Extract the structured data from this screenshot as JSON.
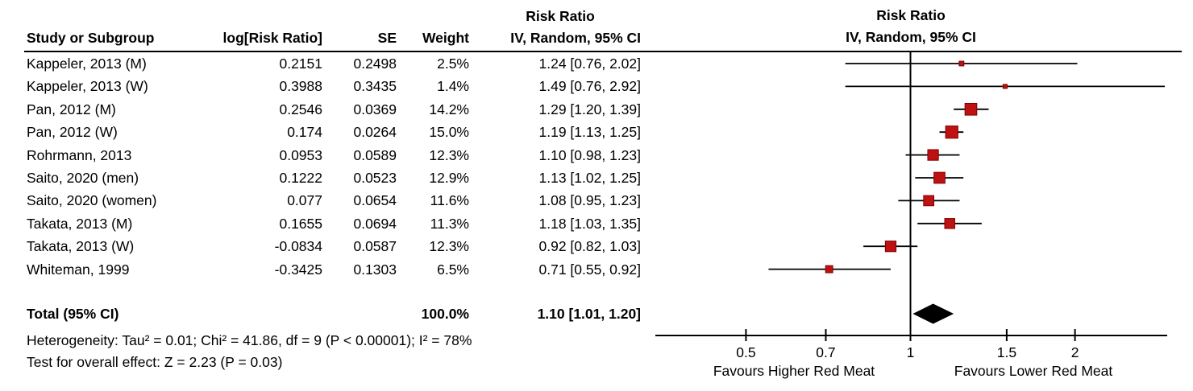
{
  "figure": {
    "columns": {
      "study": "Study or Subgroup",
      "log_rr": "log[Risk Ratio]",
      "se": "SE",
      "weight": "Weight",
      "effect_line1": "Risk Ratio",
      "effect_line2": "IV, Random, 95% CI"
    },
    "plot_header": {
      "line1": "Risk Ratio",
      "line2": "IV, Random, 95% CI"
    },
    "total_row": {
      "label": "Total (95% CI)",
      "weight": "100.0%",
      "ci_text": "1.10 [1.01, 1.20]"
    },
    "footer": {
      "heterogeneity": "Heterogeneity: Tau² = 0.01; Chi² = 41.86, df = 9 (P < 0.00001); I² = 78%",
      "overall_effect": "Test for overall effect: Z = 2.23 (P = 0.03)"
    }
  },
  "chart_data": {
    "type": "scatter",
    "subtype": "forest-plot",
    "title": "Risk Ratio IV, Random, 95% CI",
    "xscale": "log",
    "xlim": [
      0.34,
      2.95
    ],
    "xticks": [
      0.5,
      0.7,
      1,
      1.5,
      2
    ],
    "xtick_labels": [
      "0.5",
      "0.7",
      "1",
      "1.5",
      "2"
    ],
    "axis_label_left": "Favours Higher Red Meat",
    "axis_label_right": "Favours Lower Red Meat",
    "marker_color": "#be1111",
    "marker_border": "#7e0000",
    "diamond_color": "#000000",
    "studies": [
      {
        "study": "Kappeler, 2013 (M)",
        "log_rr": "0.2151",
        "se": "0.2498",
        "weight": "2.5%",
        "ci_text": "1.24 [0.76, 2.02]",
        "rr": 1.24,
        "lo": 0.76,
        "hi": 2.02,
        "weight_pct": 2.5
      },
      {
        "study": "Kappeler, 2013 (W)",
        "log_rr": "0.3988",
        "se": "0.3435",
        "weight": "1.4%",
        "ci_text": "1.49 [0.76, 2.92]",
        "rr": 1.49,
        "lo": 0.76,
        "hi": 2.92,
        "weight_pct": 1.4
      },
      {
        "study": "Pan, 2012 (M)",
        "log_rr": "0.2546",
        "se": "0.0369",
        "weight": "14.2%",
        "ci_text": "1.29 [1.20, 1.39]",
        "rr": 1.29,
        "lo": 1.2,
        "hi": 1.39,
        "weight_pct": 14.2
      },
      {
        "study": "Pan, 2012 (W)",
        "log_rr": "0.174",
        "se": "0.0264",
        "weight": "15.0%",
        "ci_text": "1.19 [1.13, 1.25]",
        "rr": 1.19,
        "lo": 1.13,
        "hi": 1.25,
        "weight_pct": 15.0
      },
      {
        "study": "Rohrmann, 2013",
        "log_rr": "0.0953",
        "se": "0.0589",
        "weight": "12.3%",
        "ci_text": "1.10 [0.98, 1.23]",
        "rr": 1.1,
        "lo": 0.98,
        "hi": 1.23,
        "weight_pct": 12.3
      },
      {
        "study": "Saito, 2020 (men)",
        "log_rr": "0.1222",
        "se": "0.0523",
        "weight": "12.9%",
        "ci_text": "1.13 [1.02, 1.25]",
        "rr": 1.13,
        "lo": 1.02,
        "hi": 1.25,
        "weight_pct": 12.9
      },
      {
        "study": "Saito, 2020 (women)",
        "log_rr": "0.077",
        "se": "0.0654",
        "weight": "11.6%",
        "ci_text": "1.08 [0.95, 1.23]",
        "rr": 1.08,
        "lo": 0.95,
        "hi": 1.23,
        "weight_pct": 11.6
      },
      {
        "study": "Takata, 2013 (M)",
        "log_rr": "0.1655",
        "se": "0.0694",
        "weight": "11.3%",
        "ci_text": "1.18 [1.03, 1.35]",
        "rr": 1.18,
        "lo": 1.03,
        "hi": 1.35,
        "weight_pct": 11.3
      },
      {
        "study": "Takata, 2013 (W)",
        "log_rr": "-0.0834",
        "se": "0.0587",
        "weight": "12.3%",
        "ci_text": "0.92 [0.82, 1.03]",
        "rr": 0.92,
        "lo": 0.82,
        "hi": 1.03,
        "weight_pct": 12.3
      },
      {
        "study": "Whiteman, 1999",
        "log_rr": "-0.3425",
        "se": "0.1303",
        "weight": "6.5%",
        "ci_text": "0.71 [0.55, 0.92]",
        "rr": 0.71,
        "lo": 0.55,
        "hi": 0.92,
        "weight_pct": 6.5
      }
    ],
    "total": {
      "label": "Total (95% CI)",
      "weight_pct": 100.0,
      "rr": 1.1,
      "lo": 1.01,
      "hi": 1.2,
      "ci_text": "1.10 [1.01, 1.20]"
    }
  }
}
